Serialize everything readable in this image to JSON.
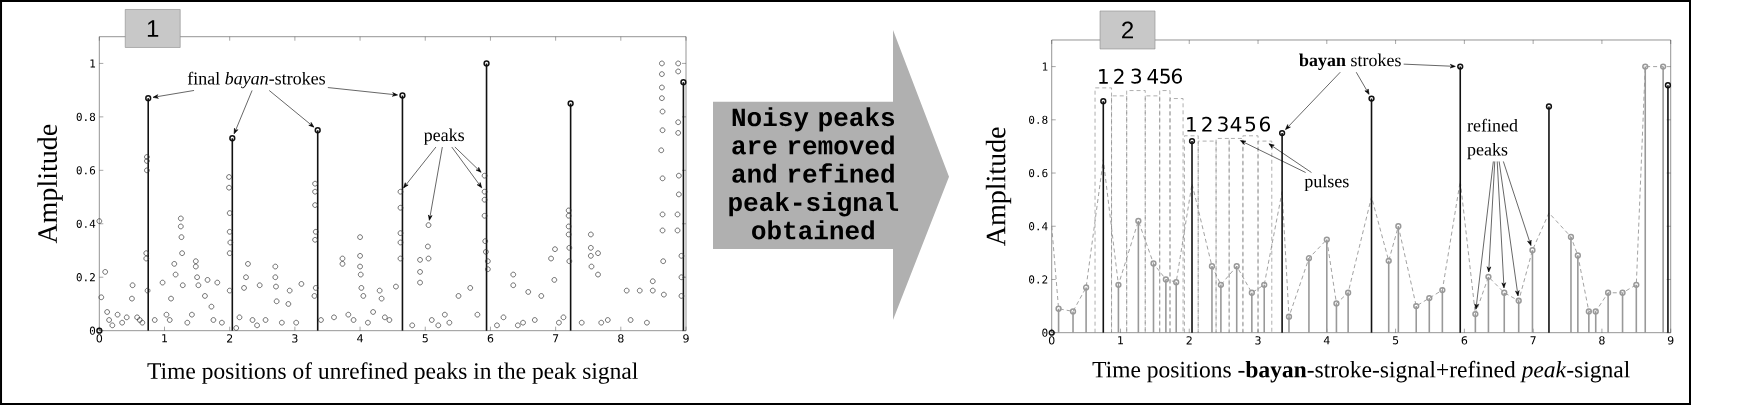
{
  "chart_data": [
    {
      "type": "lollipop",
      "title": "1",
      "xlabel": "Time positions of unrefined peaks in the peak signal",
      "ylabel": "Amplitude",
      "xlim": [
        0,
        9
      ],
      "ylim": [
        0,
        1.1
      ],
      "xticks": [
        0,
        1,
        2,
        3,
        4,
        5,
        6,
        7,
        8,
        9
      ],
      "yticks": [
        0,
        0.2,
        0.4,
        0.6,
        0.8,
        1
      ],
      "annotations": [
        {
          "text": "final *bayan*-strokes",
          "x": 0.75,
          "y": 0.87
        },
        {
          "text": "peaks",
          "x": 4.62,
          "y": 0.52
        }
      ],
      "series": [
        {
          "type": "scatter",
          "color": "#333333",
          "marker": "circle",
          "x": [
            0.0,
            0.03,
            0.09,
            0.12,
            0.2,
            0.28,
            0.5,
            0.51,
            0.58,
            0.66,
            0.72,
            0.72,
            0.73,
            0.73,
            0.73,
            0.74,
            0.97,
            1.03,
            1.1,
            1.15,
            1.17,
            1.25,
            1.25,
            1.26,
            1.27,
            1.28,
            1.48,
            1.48,
            1.5,
            1.52,
            1.62,
            1.66,
            1.72,
            1.81,
            1.99,
            1.99,
            2.0,
            2.0,
            2.01,
            2.0,
            2.0,
            2.1,
            2.22,
            2.25,
            2.28,
            2.35,
            2.46,
            2.7,
            2.7,
            2.71,
            2.72,
            2.9,
            2.92,
            3.1,
            3.31,
            3.31,
            3.31,
            3.32,
            3.31,
            3.32,
            3.3,
            3.6,
            3.73,
            3.73,
            3.9,
            4.0,
            4.0,
            4.0,
            4.01,
            4.02,
            4.05,
            4.3,
            4.33,
            4.45,
            4.55,
            4.62,
            4.62,
            4.62,
            4.62,
            4.62,
            4.8,
            4.92,
            4.92,
            4.92,
            5.05,
            5.04,
            5.05,
            5.2,
            5.3,
            5.51,
            5.69,
            5.8,
            5.91,
            5.91,
            5.91,
            5.91,
            5.92,
            5.93,
            5.96,
            5.96,
            6.1,
            6.35,
            6.35,
            6.5,
            6.58,
            6.78,
            6.93,
            6.99,
            6.98,
            7.05,
            7.2,
            7.2,
            7.2,
            7.2,
            7.21,
            7.21,
            7.54,
            7.54,
            7.54,
            7.55,
            7.65,
            7.65,
            7.8,
            8.09,
            8.29,
            8.49,
            8.49,
            8.63,
            8.63,
            8.63,
            8.63,
            8.64,
            8.64,
            8.62,
            8.64,
            8.64,
            8.64,
            8.65,
            8.66,
            8.88,
            8.88,
            8.88,
            8.88,
            8.89,
            8.89,
            8.87,
            8.87,
            8.93,
            8.93,
            8.93,
            0.15,
            0.35,
            0.42,
            0.62,
            0.85,
            1.08,
            1.35,
            1.42,
            1.75,
            1.88,
            2.15,
            2.42,
            2.55,
            2.8,
            3.02,
            3.4,
            3.82,
            4.12,
            4.2,
            4.38,
            5.1,
            5.37,
            6.2,
            6.42,
            6.68,
            7.12,
            7.4,
            7.7,
            8.15,
            8.4
          ],
          "values": [
            0.41,
            0.125,
            0.22,
            0.07,
            0.02,
            0.06,
            0.12,
            0.17,
            0.05,
            0.03,
            0.29,
            0.27,
            0.65,
            0.635,
            0.6,
            0.15,
            0.18,
            0.06,
            0.12,
            0.25,
            0.21,
            0.42,
            0.39,
            0.35,
            0.29,
            0.17,
            0.26,
            0.24,
            0.2,
            0.17,
            0.13,
            0.19,
            0.09,
            0.18,
            0.575,
            0.535,
            0.44,
            0.37,
            0.33,
            0.29,
            0.15,
            0.01,
            0.16,
            0.2,
            0.25,
            0.04,
            0.17,
            0.24,
            0.2,
            0.165,
            0.11,
            0.1,
            0.15,
            0.175,
            0.55,
            0.52,
            0.47,
            0.37,
            0.34,
            0.16,
            0.13,
            0.05,
            0.27,
            0.25,
            0.04,
            0.35,
            0.28,
            0.24,
            0.21,
            0.16,
            0.13,
            0.15,
            0.12,
            0.04,
            0.165,
            0.52,
            0.46,
            0.365,
            0.33,
            0.27,
            0.02,
            0.265,
            0.22,
            0.18,
            0.395,
            0.315,
            0.27,
            0.02,
            0.06,
            0.13,
            0.16,
            0.06,
            0.58,
            0.52,
            0.49,
            0.43,
            0.335,
            0.295,
            0.26,
            0.23,
            0.02,
            0.21,
            0.17,
            0.03,
            0.145,
            0.13,
            0.27,
            0.305,
            0.19,
            0.03,
            0.45,
            0.43,
            0.39,
            0.36,
            0.31,
            0.26,
            0.36,
            0.31,
            0.28,
            0.24,
            0.29,
            0.21,
            0.04,
            0.15,
            0.15,
            0.185,
            0.15,
            1.0,
            0.96,
            0.91,
            0.87,
            0.82,
            0.75,
            0.675,
            0.57,
            0.435,
            0.375,
            0.26,
            0.135,
            1.0,
            0.97,
            0.78,
            0.74,
            0.58,
            0.51,
            0.435,
            0.375,
            0.28,
            0.2,
            0.13,
            0.04,
            0.03,
            0.05,
            0.04,
            0.04,
            0.04,
            0.03,
            0.06,
            0.04,
            0.03,
            0.05,
            0.02,
            0.04,
            0.03,
            0.03,
            0.04,
            0.06,
            0.03,
            0.07,
            0.05,
            0.04,
            0.03,
            0.05,
            0.02,
            0.04,
            0.05,
            0.03,
            0.03,
            0.04,
            0.03
          ]
        },
        {
          "color": "#111111",
          "marker": "circle",
          "x": [
            0,
            0.75,
            2.04,
            3.35,
            4.65,
            5.94,
            7.23,
            8.96
          ],
          "values": [
            0,
            0.87,
            0.72,
            0.75,
            0.88,
            1.0,
            0.85,
            0.93
          ]
        }
      ]
    },
    {
      "type": "other",
      "annotations": [
        "Noisy peaks are removed and refined peak-signal obtained"
      ]
    },
    {
      "type": "lollipop",
      "title": "2",
      "xlabel": "Time positions -**bayan**-stroke-signal+refined *peak*-signal",
      "ylabel": "Amplitude",
      "xlim": [
        0,
        9
      ],
      "ylim": [
        0,
        1.1
      ],
      "xticks": [
        0,
        1,
        2,
        3,
        4,
        5,
        6,
        7,
        8,
        9
      ],
      "yticks": [
        0,
        0.2,
        0.4,
        0.6,
        0.8,
        1
      ],
      "annotations": [
        {
          "text": "**bayan** strokes",
          "x": 3.35,
          "y": 0.75
        },
        {
          "text": "pulses",
          "x": 2.68,
          "y": 0.73
        },
        {
          "text": "refined peaks",
          "x": 6.16,
          "y": 0.07
        },
        {
          "text": "1",
          "x": 0.75,
          "y": 0.92
        },
        {
          "text": "2",
          "x": 0.98,
          "y": 0.89
        },
        {
          "text": "3",
          "x": 1.23,
          "y": 0.91
        },
        {
          "text": "4",
          "x": 1.47,
          "y": 0.89
        },
        {
          "text": "5",
          "x": 1.65,
          "y": 0.91
        },
        {
          "text": "6",
          "x": 1.82,
          "y": 0.88
        },
        {
          "text": "1",
          "x": 2.03,
          "y": 0.74
        },
        {
          "text": "2",
          "x": 2.26,
          "y": 0.72
        },
        {
          "text": "3",
          "x": 2.49,
          "y": 0.73
        },
        {
          "text": "4",
          "x": 2.68,
          "y": 0.73
        },
        {
          "text": "5",
          "x": 2.89,
          "y": 0.74
        },
        {
          "text": "6",
          "x": 3.1,
          "y": 0.72
        }
      ],
      "series": [
        {
          "type": "histogram",
          "color": "#8c8c8c",
          "line_style": "dashed",
          "bins": [
            0.63,
            0.87,
            1.09,
            1.36,
            1.57,
            1.72,
            1.91
          ],
          "values": [
            0.92,
            0.89,
            0.91,
            0.89,
            0.91,
            0.88
          ]
        },
        {
          "type": "histogram",
          "color": "#8c8c8c",
          "line_style": "dashed",
          "bins": [
            1.93,
            2.13,
            2.39,
            2.58,
            2.78,
            3.0,
            3.2
          ],
          "values": [
            0.74,
            0.72,
            0.73,
            0.73,
            0.74,
            0.72
          ]
        },
        {
          "type": "line",
          "color": "#8a8a8a",
          "line_style": "dashed",
          "x": [
            0,
            0.1,
            0.31,
            0.5,
            0.75,
            0.97,
            1.26,
            1.48,
            1.66,
            1.81,
            2.04,
            2.33,
            2.46,
            2.69,
            2.91,
            3.09,
            3.35,
            3.45,
            3.74,
            4.0,
            4.14,
            4.31,
            4.65,
            4.9,
            5.04,
            5.3,
            5.49,
            5.68,
            5.94,
            6.16,
            6.35,
            6.58,
            6.79,
            6.99,
            7.23,
            7.55,
            7.65,
            7.81,
            7.91,
            8.09,
            8.3,
            8.5,
            8.63,
            8.89
          ],
          "values": [
            0.4,
            0.09,
            0.08,
            0.17,
            0.65,
            0.18,
            0.42,
            0.26,
            0.2,
            0.19,
            0.56,
            0.25,
            0.18,
            0.25,
            0.15,
            0.18,
            0.53,
            0.06,
            0.28,
            0.35,
            0.11,
            0.15,
            0.51,
            0.27,
            0.4,
            0.1,
            0.13,
            0.16,
            0.57,
            0.07,
            0.21,
            0.15,
            0.12,
            0.31,
            0.45,
            0.36,
            0.29,
            0.08,
            0.08,
            0.15,
            0.15,
            0.18,
            1.0,
            1.0
          ]
        },
        {
          "color": "#999999",
          "marker": "circle",
          "x": [
            0.1,
            0.31,
            0.5,
            0.97,
            1.26,
            1.48,
            1.66,
            1.81,
            2.33,
            2.46,
            2.69,
            2.91,
            3.09,
            3.45,
            3.74,
            4.0,
            4.14,
            4.31,
            4.9,
            5.04,
            5.3,
            5.49,
            5.68,
            6.16,
            6.35,
            6.58,
            6.79,
            6.99,
            7.55,
            7.65,
            7.81,
            7.91,
            8.09,
            8.3,
            8.5,
            8.63,
            8.89
          ],
          "values": [
            0.09,
            0.08,
            0.17,
            0.18,
            0.42,
            0.26,
            0.2,
            0.19,
            0.25,
            0.18,
            0.25,
            0.15,
            0.18,
            0.06,
            0.28,
            0.35,
            0.11,
            0.15,
            0.27,
            0.4,
            0.1,
            0.13,
            0.16,
            0.07,
            0.21,
            0.15,
            0.12,
            0.31,
            0.36,
            0.29,
            0.08,
            0.08,
            0.15,
            0.15,
            0.18,
            1.0,
            1.0
          ]
        },
        {
          "color": "#111111",
          "marker": "circle",
          "x": [
            0,
            0.75,
            2.04,
            3.35,
            4.65,
            5.94,
            7.23,
            8.96
          ],
          "values": [
            0,
            0.87,
            0.72,
            0.75,
            0.88,
            1.0,
            0.85,
            0.93
          ]
        }
      ]
    }
  ]
}
